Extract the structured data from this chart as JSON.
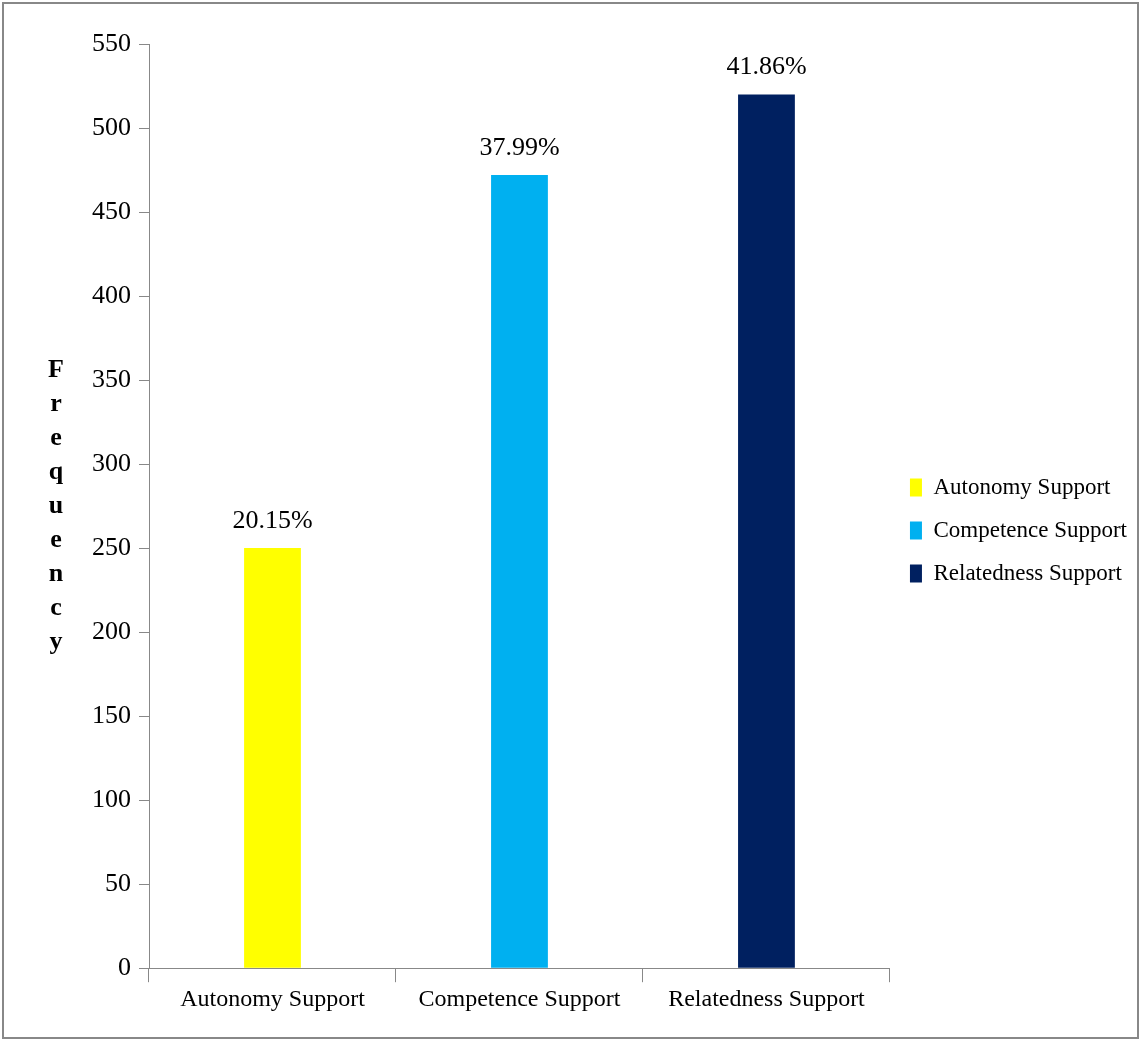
{
  "chart_data": {
    "type": "bar",
    "ylabel": "Frequency",
    "categories": [
      "Autonomy Support",
      "Competence Support",
      "Relatedness Support"
    ],
    "series": [
      {
        "name": "Autonomy Support",
        "color": "#ffff00",
        "values": [
          250,
          null,
          null
        ]
      },
      {
        "name": "Competence Support",
        "color": "#00b0f0",
        "values": [
          null,
          472,
          null
        ]
      },
      {
        "name": "Relatedness Support",
        "color": "#002060",
        "values": [
          null,
          null,
          520
        ]
      }
    ],
    "annotations": [
      {
        "text": "20.15%",
        "x": "Autonomy Support",
        "y": 250
      },
      {
        "text": "37.99%",
        "x": "Competence Support",
        "y": 472
      },
      {
        "text": "41.86%",
        "x": "Relatedness Support",
        "y": 520
      }
    ],
    "ylim": [
      0,
      550
    ],
    "yticks": [
      0,
      50,
      100,
      150,
      200,
      250,
      300,
      350,
      400,
      450,
      500,
      550
    ],
    "grid": false,
    "legend": "right"
  }
}
